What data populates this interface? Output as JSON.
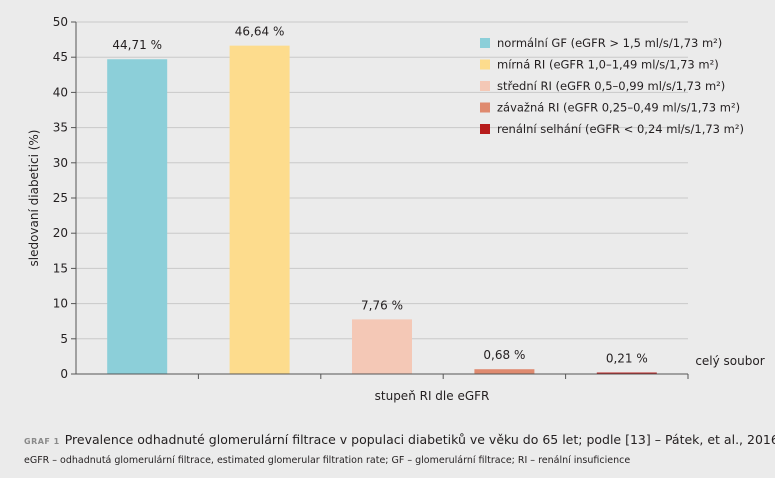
{
  "chart_data": {
    "type": "bar",
    "ylabel": "sledovaní diabetici (%)",
    "xlabel": "stupeň RI dle eGFR",
    "category_label": "celý soubor",
    "ylim": [
      0,
      50
    ],
    "yticks": [
      0,
      5,
      10,
      15,
      20,
      25,
      30,
      35,
      40,
      45,
      50
    ],
    "grid": true,
    "legend_position": "top-right",
    "series": [
      {
        "name": "normální GF (eGFR > 1,5 ml/s/1,73 m²)",
        "value": 44.71,
        "label": "44,71 %",
        "color": "#8ccfd9"
      },
      {
        "name": "mírná RI (eGFR 1,0–1,49 ml/s/1,73 m²)",
        "value": 46.64,
        "label": "46,64 %",
        "color": "#fddc8d"
      },
      {
        "name": "střední RI (eGFR 0,5–0,99 ml/s/1,73 m²)",
        "value": 7.76,
        "label": "7,76 %",
        "color": "#f4c8b6"
      },
      {
        "name": "závažná RI (eGFR 0,25–0,49 ml/s/1,73 m²)",
        "value": 0.68,
        "label": "0,68 %",
        "color": "#df8a6f"
      },
      {
        "name": "renální selhání (eGFR < 0,24 ml/s/1,73 m²)",
        "value": 0.21,
        "label": "0,21 %",
        "color": "#b71c1c"
      }
    ]
  },
  "caption": {
    "label": "GRAF 1",
    "title": "Prevalence odhadnuté glomerulární filtrace v populaci diabetiků ve věku do 65 let; podle [13] – Pátek, et al., 2016.",
    "footnote": "eGFR – odhadnutá glomerulární filtrace, estimated glomerular filtration rate; GF – glomerulární filtrace; RI – renální insuficience"
  }
}
